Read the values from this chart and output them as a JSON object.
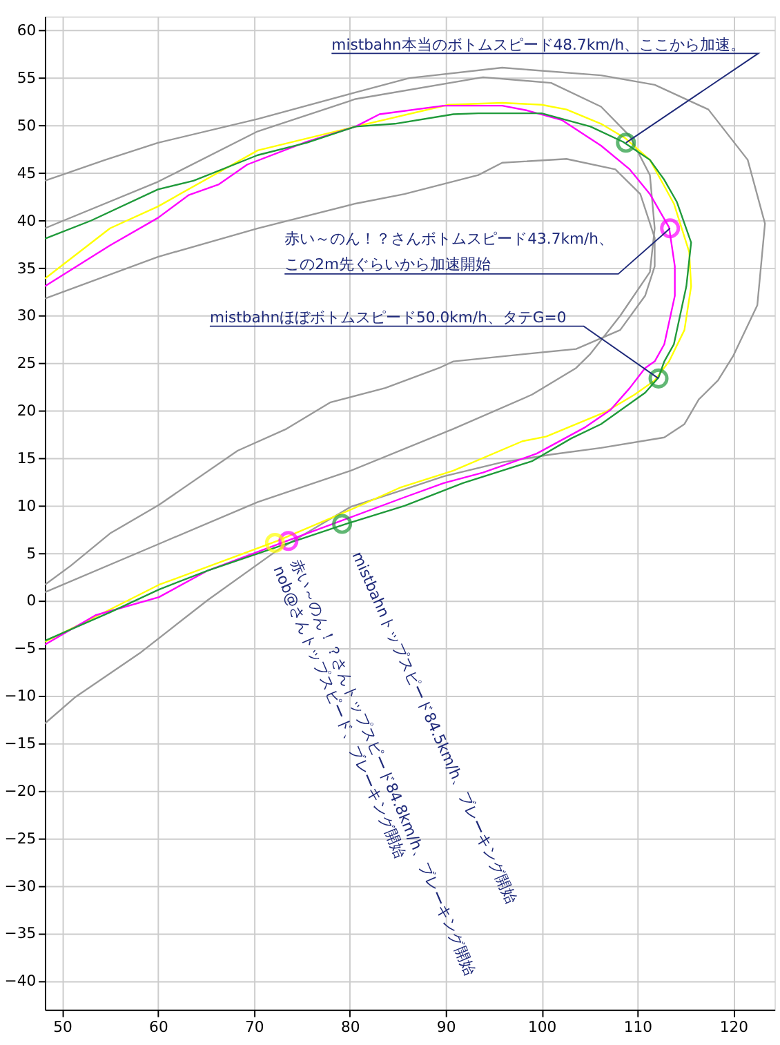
{
  "chart_data": {
    "type": "line",
    "xlim": [
      48.2,
      124.3
    ],
    "ylim": [
      -43,
      61.5
    ],
    "xticks": [
      50,
      60,
      70,
      80,
      90,
      100,
      110,
      120
    ],
    "yticks": [
      -40,
      -35,
      -30,
      -25,
      -20,
      -15,
      -10,
      -5,
      0,
      5,
      10,
      15,
      20,
      25,
      30,
      35,
      40,
      45,
      50,
      55,
      60
    ],
    "grid": true,
    "line_style": "solid",
    "series": [
      {
        "color": "#999999",
        "x": [
          48.2,
          54.5,
          60,
          70.4,
          80.6,
          86.2,
          95.9,
          106.2,
          111.8,
          117.4,
          121.5,
          123.3,
          122.5,
          120,
          118.4,
          116.4,
          114.9,
          112.8,
          106.2,
          101,
          95.9,
          89.8,
          84.7,
          80.1,
          72.4,
          65.2,
          58.1,
          51.4,
          48.2
        ],
        "values": [
          44.2,
          46.4,
          48.2,
          50.7,
          53.5,
          55,
          56.1,
          55.3,
          54.3,
          51.7,
          46.4,
          39.7,
          31.1,
          25.8,
          23.2,
          21.2,
          18.6,
          17.2,
          16.1,
          15.4,
          14.6,
          13.1,
          11.4,
          9.9,
          5.3,
          0.1,
          -5.5,
          -10.1,
          -12.9
        ]
      },
      {
        "color": "#999999",
        "x": [
          48.2,
          60,
          70.4,
          80.6,
          93.9,
          101,
          106.2,
          109.2,
          111.3,
          111.8,
          111.3,
          108.2,
          105.1,
          103.6,
          99,
          90.8,
          80.1,
          70.4,
          60.1,
          48.2
        ],
        "values": [
          39.2,
          44.1,
          49.4,
          52.8,
          55.1,
          54.5,
          52,
          48.9,
          44.8,
          39.2,
          34.6,
          30,
          26,
          24.5,
          21.7,
          18.1,
          13.7,
          10.4,
          6,
          0.9
        ]
      },
      {
        "color": "#999999",
        "x": [
          48.2,
          60,
          70.4,
          80.6,
          85.7,
          93.4,
          95.9,
          102.6,
          107.7,
          110.3,
          111.8,
          111.8,
          110.8,
          108.2,
          103.6,
          98.5,
          90.8,
          89.3,
          83.7,
          78,
          73.4,
          68.3,
          60.1,
          55,
          50.9,
          48.2
        ],
        "values": [
          31.8,
          36.2,
          39.2,
          41.8,
          42.8,
          44.8,
          46.1,
          46.5,
          45.4,
          42.8,
          38.2,
          35.2,
          32.1,
          28.5,
          26.5,
          26,
          25.2,
          24.5,
          22.4,
          20.9,
          18.1,
          15.8,
          10.1,
          7.1,
          3.7,
          1.7
        ]
      },
      {
        "color": "#ffff00",
        "x": [
          48.2,
          55,
          60,
          70.4,
          80.6,
          90.3,
          95.9,
          100,
          102.6,
          106.2,
          108.7,
          111.3,
          113.8,
          115.4,
          115.6,
          114.9,
          113.3,
          111.8,
          109.7,
          106.7,
          100.5,
          98,
          90.8,
          85.2,
          80.1,
          72.4,
          60.1,
          55,
          48.2
        ],
        "values": [
          33.9,
          39.2,
          41.5,
          47.4,
          49.9,
          52.2,
          52.4,
          52.2,
          51.7,
          50.2,
          48.7,
          46.4,
          41.8,
          36.7,
          33.1,
          28.5,
          25.2,
          23.2,
          21.7,
          19.9,
          17.3,
          16.8,
          13.7,
          11.9,
          9.6,
          6.3,
          1.7,
          -0.9,
          -4.3
        ]
      },
      {
        "color": "#ff00ff",
        "x": [
          48.2,
          55,
          60,
          63.2,
          66.3,
          69.3,
          75.5,
          80.6,
          83.1,
          89.8,
          95.9,
          98.5,
          102.1,
          106.2,
          109.2,
          111.3,
          113.3,
          113.9,
          113.9,
          112.8,
          111.8,
          110.8,
          109.2,
          107.2,
          104.6,
          99.5,
          93.9,
          89.8,
          85.7,
          80.1,
          73.4,
          65.2,
          60.1,
          53.5,
          48.2
        ],
        "values": [
          33.1,
          37.4,
          40.3,
          42.7,
          43.8,
          45.9,
          48.3,
          49.9,
          51.2,
          52.1,
          52.1,
          51.6,
          50.6,
          47.9,
          45.4,
          42.8,
          39.3,
          35.2,
          32.1,
          27,
          25.2,
          24.5,
          22.4,
          20.1,
          18.3,
          15.5,
          13.5,
          12.4,
          10.9,
          8.8,
          6.3,
          3.2,
          0.4,
          -1.5,
          -4.6
        ]
      },
      {
        "color": "#1f9a3a",
        "x": [
          48.2,
          53,
          60,
          63.7,
          70.4,
          75.5,
          80.6,
          84.7,
          90.8,
          93.4,
          100,
          105.1,
          108.5,
          111.3,
          112.8,
          114.1,
          115.6,
          115.1,
          113.8,
          112.8,
          112.2,
          110.8,
          108.7,
          106.2,
          103.1,
          99,
          91.8,
          85.7,
          79.6,
          73.4,
          65.2,
          60.1,
          55,
          48.2
        ],
        "values": [
          38.1,
          40,
          43.3,
          44.2,
          46.9,
          48.2,
          49.9,
          50.2,
          51.2,
          51.3,
          51.3,
          49.9,
          48.3,
          46.4,
          44.3,
          42,
          37.7,
          33.1,
          27,
          25.2,
          23.5,
          21.9,
          20.4,
          18.6,
          17.1,
          14.7,
          12.4,
          10,
          8.1,
          6,
          3.2,
          1.2,
          -1.2,
          -4.2
        ]
      },
      {
        "type": "scatter",
        "marker": "circle",
        "color": "#1f9a3a",
        "x": [
          108.8,
          112.2,
          79.2
        ],
        "values": [
          48.2,
          23.4,
          8.1
        ]
      },
      {
        "type": "scatter",
        "marker": "circle",
        "color": "#ff00ff",
        "x": [
          113.4,
          73.6
        ],
        "values": [
          39.2,
          6.3
        ]
      },
      {
        "type": "scatter",
        "marker": "circle",
        "color": "#ffff00",
        "x": [
          72.2
        ],
        "values": [
          6.1
        ]
      }
    ],
    "annotations": [
      {
        "text": "mistbahn本当のボトムスピード48.7km/h、ここから加速。",
        "x": 108.8,
        "y": 48.2
      },
      {
        "text": "赤い～のん！？さんボトムスピード43.7km/h、この2m先ぐらいから加速開始",
        "x": 113.4,
        "y": 39.2
      },
      {
        "text": "mistbahnほぼボトムスピード50.0km/h、タテG=0",
        "x": 112.2,
        "y": 23.4
      },
      {
        "text": "mistbahnトップスピード84.5km/h、ブレーキング開始",
        "x": 79.2,
        "y": 8.1
      },
      {
        "text": "赤い～のん！？さんトップスピード84.8km/h、ブレーキング開始",
        "x": 73.6,
        "y": 6.3
      },
      {
        "text": "nob@さんトップスピード、ブレーキング開始",
        "x": 72.2,
        "y": 6.1
      }
    ]
  }
}
